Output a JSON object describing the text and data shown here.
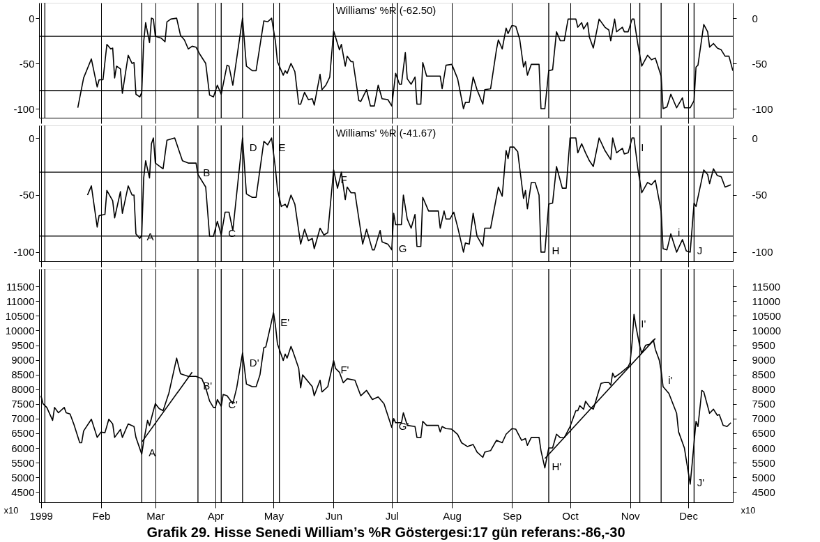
{
  "chart_data": [
    {
      "type": "line",
      "title": "Williams' %R (-62.50)",
      "xlim": [
        "1998-12-31",
        "1999-12-24"
      ],
      "xticks": [
        {
          "value": "1999-01-01",
          "label": null
        },
        {
          "value": "1999-02-01",
          "label": null
        },
        {
          "value": "1999-03-01",
          "label": null
        },
        {
          "value": "1999-04-01",
          "label": null
        },
        {
          "value": "1999-05-01",
          "label": null
        },
        {
          "value": "1999-06-01",
          "label": null
        },
        {
          "value": "1999-07-01",
          "label": null
        },
        {
          "value": "1999-08-01",
          "label": null
        },
        {
          "value": "1999-09-01",
          "label": null
        },
        {
          "value": "1999-10-01",
          "label": null
        },
        {
          "value": "1999-11-01",
          "label": null
        },
        {
          "value": "1999-12-01",
          "label": null
        }
      ],
      "ylim": [
        -110,
        17
      ],
      "yticks": [
        -100,
        -50,
        0
      ],
      "y2lim": [
        -110,
        17
      ],
      "y2ticks": [
        -100,
        -50,
        0
      ],
      "grid": "x",
      "tick_labels": "y",
      "ref_lines": [
        {
          "axis": "y",
          "value": -20
        },
        {
          "axis": "y",
          "value": -80
        },
        {
          "axis": "x",
          "value": "1999-01-03"
        },
        {
          "axis": "x",
          "value": "1999-02-22"
        },
        {
          "axis": "x",
          "value": "1999-03-23"
        },
        {
          "axis": "x",
          "value": "1999-04-04"
        },
        {
          "axis": "x",
          "value": "1999-04-15"
        },
        {
          "axis": "x",
          "value": "1999-05-04"
        },
        {
          "axis": "x",
          "value": "1999-07-04"
        },
        {
          "axis": "x",
          "value": "1999-09-20"
        },
        {
          "axis": "x",
          "value": "1999-11-06"
        },
        {
          "axis": "x",
          "value": "1999-11-17"
        },
        {
          "axis": "x",
          "value": "1999-12-04"
        }
      ],
      "series": [
        {
          "color": "#000000",
          "x": [
            "1999-01-20",
            "1999-01-23",
            "1999-01-27",
            "1999-01-30",
            "1999-01-31",
            "1999-02-02",
            "1999-02-04",
            "1999-02-06",
            "1999-02-07",
            "1999-02-08",
            "1999-02-09",
            "1999-02-11",
            "1999-02-12",
            "1999-02-15",
            "1999-02-17",
            "1999-02-18",
            "1999-02-19",
            "1999-02-21",
            "1999-02-22",
            "1999-02-23",
            "1999-02-24",
            "1999-02-26",
            "1999-02-27",
            "1999-02-28",
            "1999-03-01",
            "1999-03-04",
            "1999-03-06",
            "1999-03-07",
            "1999-03-09",
            "1999-03-12",
            "1999-03-14",
            "1999-03-16",
            "1999-03-18",
            "1999-03-20",
            "1999-03-22",
            "1999-03-24",
            "1999-03-27",
            "1999-03-29",
            "1999-03-31",
            "1999-04-02",
            "1999-04-04",
            "1999-04-07",
            "1999-04-08",
            "1999-04-10",
            "1999-04-15",
            "1999-04-17",
            "1999-04-20",
            "1999-04-22",
            "1999-04-26",
            "1999-04-28",
            "1999-04-30",
            "1999-05-02",
            "1999-05-03",
            "1999-05-06",
            "1999-05-07",
            "1999-05-08",
            "1999-05-10",
            "1999-05-12",
            "1999-05-14",
            "1999-05-15",
            "1999-05-17",
            "1999-05-19",
            "1999-05-21",
            "1999-05-22",
            "1999-05-25",
            "1999-05-26",
            "1999-05-28",
            "1999-05-30",
            "1999-06-01",
            "1999-06-04",
            "1999-06-05",
            "1999-06-07",
            "1999-06-08",
            "1999-06-10",
            "1999-06-11",
            "1999-06-14",
            "1999-06-15",
            "1999-06-18",
            "1999-06-20",
            "1999-06-22",
            "1999-06-24",
            "1999-06-26",
            "1999-06-29",
            "1999-07-01",
            "1999-07-03",
            "1999-07-05",
            "1999-07-06",
            "1999-07-08",
            "1999-07-09",
            "1999-07-11",
            "1999-07-13",
            "1999-07-14",
            "1999-07-16",
            "1999-07-17",
            "1999-07-19",
            "1999-07-26",
            "1999-07-27",
            "1999-07-29",
            "1999-08-01",
            "1999-08-04",
            "1999-08-07",
            "1999-08-08",
            "1999-08-10",
            "1999-08-12",
            "1999-08-14",
            "1999-08-17",
            "1999-08-18",
            "1999-08-21",
            "1999-08-24",
            "1999-08-25",
            "1999-08-27",
            "1999-08-29",
            "1999-08-30",
            "1999-09-01",
            "1999-09-03",
            "1999-09-05",
            "1999-09-07",
            "1999-09-08",
            "1999-09-09",
            "1999-09-11",
            "1999-09-15",
            "1999-09-16",
            "1999-09-18",
            "1999-09-20",
            "1999-09-22",
            "1999-09-24",
            "1999-09-26",
            "1999-09-28",
            "1999-09-30",
            "1999-10-04",
            "1999-10-05",
            "1999-10-07",
            "1999-10-08",
            "1999-10-10",
            "1999-10-11",
            "1999-10-13",
            "1999-10-16",
            "1999-10-19",
            "1999-10-21",
            "1999-10-22",
            "1999-10-24",
            "1999-10-25",
            "1999-10-28",
            "1999-10-29",
            "1999-10-31",
            "1999-11-02",
            "1999-11-03",
            "1999-11-05",
            "1999-11-07",
            "1999-11-10",
            "1999-11-12",
            "1999-11-14",
            "1999-11-17",
            "1999-11-18",
            "1999-11-20",
            "1999-11-22",
            "1999-11-25",
            "1999-11-28",
            "1999-11-29",
            "1999-12-02",
            "1999-12-04",
            "1999-12-05",
            "1999-12-06",
            "1999-12-09",
            "1999-12-11",
            "1999-12-12",
            "1999-12-14",
            "1999-12-16",
            "1999-12-18",
            "1999-12-20",
            "1999-12-22",
            "1999-12-24"
          ],
          "values": [
            -99,
            -66,
            -45,
            -76,
            -68,
            -68,
            -29,
            -34,
            -33,
            -66,
            -53,
            -56,
            -83,
            -41,
            -50,
            -49,
            -84,
            -87,
            -82,
            -26,
            -5,
            -27,
            0,
            -1,
            -20,
            -22,
            -26,
            -4,
            -1,
            0,
            -19,
            -24,
            -34,
            -31,
            -32,
            -40,
            -50,
            -85,
            -87,
            -74,
            -84,
            -52,
            -53,
            -74,
            0,
            -53,
            -58,
            -58,
            -3,
            -4,
            0,
            -26,
            -48,
            -63,
            -58,
            -61,
            -50,
            -59,
            -95,
            -95,
            -82,
            -90,
            -89,
            -96,
            -62,
            -79,
            -74,
            -65,
            -14,
            -35,
            -29,
            -53,
            -42,
            -48,
            -48,
            -91,
            -92,
            -79,
            -97,
            -97,
            -74,
            -89,
            -90,
            -97,
            -61,
            -73,
            -73,
            -38,
            -67,
            -73,
            -65,
            -95,
            -95,
            -49,
            -64,
            -64,
            -78,
            -52,
            -51,
            -67,
            -100,
            -93,
            -93,
            -65,
            -79,
            -95,
            -79,
            -78,
            -35,
            -24,
            -34,
            -11,
            -17,
            -8,
            -9,
            -23,
            -54,
            -48,
            -63,
            -51,
            -51,
            -100,
            -100,
            -58,
            -57,
            -15,
            -25,
            -25,
            -1,
            -1,
            -10,
            -5,
            -12,
            -5,
            -21,
            -33,
            -1,
            -10,
            -13,
            -25,
            -1,
            -15,
            -10,
            -15,
            -15,
            -1,
            -1,
            -29,
            -53,
            -41,
            -46,
            -44,
            -64,
            -100,
            -98,
            -84,
            -99,
            -88,
            -99,
            -99,
            -91,
            -54,
            -52,
            -7,
            -15,
            -32,
            -28,
            -33,
            -35,
            -42,
            -42,
            -58
          ]
        }
      ]
    },
    {
      "type": "line",
      "title": "Williams' %R (-41.67)",
      "xlim": [
        "1998-12-31",
        "1999-12-24"
      ],
      "xticks": [
        {
          "value": "1999-01-01",
          "label": null
        },
        {
          "value": "1999-02-01",
          "label": null
        },
        {
          "value": "1999-03-01",
          "label": null
        },
        {
          "value": "1999-04-01",
          "label": null
        },
        {
          "value": "1999-05-01",
          "label": null
        },
        {
          "value": "1999-06-01",
          "label": null
        },
        {
          "value": "1999-07-01",
          "label": null
        },
        {
          "value": "1999-08-01",
          "label": null
        },
        {
          "value": "1999-09-01",
          "label": null
        },
        {
          "value": "1999-10-01",
          "label": null
        },
        {
          "value": "1999-11-01",
          "label": null
        },
        {
          "value": "1999-12-01",
          "label": null
        }
      ],
      "ylim": [
        -108,
        11
      ],
      "yticks": [
        -100,
        -50,
        0
      ],
      "y2lim": [
        -108,
        11
      ],
      "y2ticks": [
        -100,
        -50,
        0
      ],
      "grid": "x",
      "tick_labels": "y",
      "ref_lines": [
        {
          "axis": "y",
          "value": -30
        },
        {
          "axis": "y",
          "value": -86
        },
        {
          "axis": "x",
          "value": "1999-01-03"
        },
        {
          "axis": "x",
          "value": "1999-02-22"
        },
        {
          "axis": "x",
          "value": "1999-03-23"
        },
        {
          "axis": "x",
          "value": "1999-04-04"
        },
        {
          "axis": "x",
          "value": "1999-04-15"
        },
        {
          "axis": "x",
          "value": "1999-05-04"
        },
        {
          "axis": "x",
          "value": "1999-07-04"
        },
        {
          "axis": "x",
          "value": "1999-09-20"
        },
        {
          "axis": "x",
          "value": "1999-11-06"
        },
        {
          "axis": "x",
          "value": "1999-11-17"
        },
        {
          "axis": "x",
          "value": "1999-12-04"
        }
      ],
      "annotations": [
        {
          "text": "A",
          "x": "1999-02-21",
          "y": -88
        },
        {
          "text": "B",
          "x": "1999-03-22",
          "y": -22
        },
        {
          "text": "C",
          "x": "1999-04-04",
          "y": -85
        },
        {
          "text": "D",
          "x": "1999-04-15",
          "y": 0
        },
        {
          "text": "E",
          "x": "1999-04-30",
          "y": 0
        },
        {
          "text": "F",
          "x": "1999-06-01",
          "y": -28
        },
        {
          "text": "G",
          "x": "1999-07-01",
          "y": -98
        },
        {
          "text": "H",
          "x": "1999-09-18",
          "y": -100
        },
        {
          "text": "I",
          "x": "1999-11-03",
          "y": 0
        },
        {
          "text": "i",
          "x": "1999-11-22",
          "y": -84
        },
        {
          "text": "J",
          "x": "1999-12-02",
          "y": -100
        }
      ],
      "series": [
        {
          "color": "#000000",
          "x": [
            "1999-01-25",
            "1999-01-27",
            "1999-01-30",
            "1999-01-31",
            "1999-02-03",
            "1999-02-04",
            "1999-02-07",
            "1999-02-08",
            "1999-02-11",
            "1999-02-12",
            "1999-02-15",
            "1999-02-17",
            "1999-02-18",
            "1999-02-19",
            "1999-02-21",
            "1999-02-22",
            "1999-02-23",
            "1999-02-24",
            "1999-02-26",
            "1999-02-27",
            "1999-02-28",
            "1999-03-01",
            "1999-03-05",
            "1999-03-07",
            "1999-03-11",
            "1999-03-15",
            "1999-03-18",
            "1999-03-22",
            "1999-03-23",
            "1999-03-27",
            "1999-03-29",
            "1999-03-31",
            "1999-04-02",
            "1999-04-04",
            "1999-04-06",
            "1999-04-08",
            "1999-04-10",
            "1999-04-15",
            "1999-04-17",
            "1999-04-20",
            "1999-04-22",
            "1999-04-26",
            "1999-04-28",
            "1999-04-30",
            "1999-05-02",
            "1999-05-03",
            "1999-05-05",
            "1999-05-07",
            "1999-05-08",
            "1999-05-10",
            "1999-05-12",
            "1999-05-15",
            "1999-05-17",
            "1999-05-19",
            "1999-05-21",
            "1999-05-22",
            "1999-05-25",
            "1999-05-27",
            "1999-05-29",
            "1999-06-01",
            "1999-06-03",
            "1999-06-05",
            "1999-06-07",
            "1999-06-08",
            "1999-06-10",
            "1999-06-12",
            "1999-06-16",
            "1999-06-18",
            "1999-06-21",
            "1999-06-22",
            "1999-06-25",
            "1999-06-26",
            "1999-06-29",
            "1999-07-01",
            "1999-07-02",
            "1999-07-03",
            "1999-07-06",
            "1999-07-07",
            "1999-07-09",
            "1999-07-11",
            "1999-07-13",
            "1999-07-14",
            "1999-07-16",
            "1999-07-17",
            "1999-07-20",
            "1999-07-25",
            "1999-07-26",
            "1999-07-28",
            "1999-07-29",
            "1999-07-31",
            "1999-08-02",
            "1999-08-04",
            "1999-08-07",
            "1999-08-08",
            "1999-08-10",
            "1999-08-12",
            "1999-08-14",
            "1999-08-17",
            "1999-08-18",
            "1999-08-21",
            "1999-08-25",
            "1999-08-27",
            "1999-08-29",
            "1999-08-30",
            "1999-08-31",
            "1999-09-02",
            "1999-09-04",
            "1999-09-05",
            "1999-09-07",
            "1999-09-08",
            "1999-09-09",
            "1999-09-11",
            "1999-09-13",
            "1999-09-15",
            "1999-09-16",
            "1999-09-18",
            "1999-09-20",
            "1999-09-22",
            "1999-09-24",
            "1999-09-27",
            "1999-09-29",
            "1999-10-01",
            "1999-10-04",
            "1999-10-05",
            "1999-10-07",
            "1999-10-09",
            "1999-10-11",
            "1999-10-13",
            "1999-10-16",
            "1999-10-19",
            "1999-10-22",
            "1999-10-23",
            "1999-10-25",
            "1999-10-28",
            "1999-10-29",
            "1999-10-31",
            "1999-11-02",
            "1999-11-03",
            "1999-11-05",
            "1999-11-07",
            "1999-11-10",
            "1999-11-12",
            "1999-11-14",
            "1999-11-17",
            "1999-11-18",
            "1999-11-20",
            "1999-11-22",
            "1999-11-25",
            "1999-11-28",
            "1999-11-30",
            "1999-12-02",
            "1999-12-04",
            "1999-12-05",
            "1999-12-09",
            "1999-12-11",
            "1999-12-12",
            "1999-12-14",
            "1999-12-16",
            "1999-12-18",
            "1999-12-20",
            "1999-12-23"
          ],
          "values": [
            -50,
            -42,
            -78,
            -68,
            -67,
            -46,
            -55,
            -70,
            -47,
            -66,
            -42,
            -50,
            -50,
            -84,
            -88,
            -85,
            -35,
            -20,
            -35,
            -5,
            0,
            -22,
            -27,
            -2,
            0,
            -20,
            -22,
            -22,
            -32,
            -43,
            -86,
            -86,
            -73,
            -85,
            -65,
            -65,
            -81,
            0,
            -49,
            -52,
            -52,
            -3,
            -6,
            0,
            -27,
            -45,
            -60,
            -58,
            -61,
            -50,
            -58,
            -93,
            -80,
            -90,
            -88,
            -97,
            -79,
            -85,
            -83,
            -28,
            -44,
            -30,
            -54,
            -43,
            -48,
            -48,
            -93,
            -80,
            -98,
            -98,
            -81,
            -91,
            -93,
            -98,
            -66,
            -76,
            -76,
            -50,
            -71,
            -79,
            -67,
            -95,
            -95,
            -52,
            -64,
            -64,
            -79,
            -64,
            -71,
            -71,
            -65,
            -78,
            -100,
            -92,
            -93,
            -66,
            -86,
            -95,
            -79,
            -79,
            -43,
            -51,
            -11,
            -18,
            -8,
            -8,
            -12,
            -26,
            -53,
            -46,
            -62,
            -39,
            -39,
            -50,
            -100,
            -100,
            -58,
            -57,
            -25,
            -44,
            -44,
            0,
            0,
            -13,
            -5,
            -13,
            -20,
            -25,
            0,
            -11,
            -19,
            0,
            -13,
            -9,
            -14,
            -13,
            0,
            0,
            -27,
            -48,
            -39,
            -41,
            -37,
            -64,
            -97,
            -98,
            -84,
            -100,
            -89,
            -99,
            -100,
            -57,
            -60,
            -28,
            -32,
            -40,
            -27,
            -33,
            -34,
            -43,
            -41
          ]
        }
      ]
    },
    {
      "type": "line",
      "xlim": [
        "1998-12-31",
        "1999-12-24"
      ],
      "xticks": [
        {
          "value": "1999-01-01",
          "label": "1999"
        },
        {
          "value": "1999-02-01",
          "label": "Feb"
        },
        {
          "value": "1999-03-01",
          "label": "Mar"
        },
        {
          "value": "1999-04-01",
          "label": "Apr"
        },
        {
          "value": "1999-05-01",
          "label": "May"
        },
        {
          "value": "1999-06-01",
          "label": "Jun"
        },
        {
          "value": "1999-07-01",
          "label": "Jul"
        },
        {
          "value": "1999-08-01",
          "label": "Aug"
        },
        {
          "value": "1999-09-01",
          "label": "Sep"
        },
        {
          "value": "1999-10-01",
          "label": "Oct"
        },
        {
          "value": "1999-11-01",
          "label": "Nov"
        },
        {
          "value": "1999-12-01",
          "label": "Dec"
        }
      ],
      "ylim": [
        4150,
        12100
      ],
      "yticks": [
        4500,
        5000,
        5500,
        6000,
        6500,
        7000,
        7500,
        8000,
        8500,
        9000,
        9500,
        10000,
        10500,
        11000,
        11500
      ],
      "y2lim": [
        4150,
        12100
      ],
      "y2ticks": [
        4500,
        5000,
        5500,
        6000,
        6500,
        7000,
        7500,
        8000,
        8500,
        9000,
        9500,
        10000,
        10500,
        11000,
        11500
      ],
      "grid": "x",
      "ref_lines": [
        {
          "axis": "x",
          "value": "1999-01-03"
        },
        {
          "axis": "x",
          "value": "1999-02-22"
        },
        {
          "axis": "x",
          "value": "1999-03-23"
        },
        {
          "axis": "x",
          "value": "1999-04-04"
        },
        {
          "axis": "x",
          "value": "1999-04-15"
        },
        {
          "axis": "x",
          "value": "1999-05-04"
        },
        {
          "axis": "x",
          "value": "1999-07-04"
        },
        {
          "axis": "x",
          "value": "1999-09-20"
        },
        {
          "axis": "x",
          "value": "1999-11-06"
        },
        {
          "axis": "x",
          "value": "1999-11-17"
        },
        {
          "axis": "x",
          "value": "1999-12-04"
        }
      ],
      "annotations": [
        "x10",
        "x10",
        "Grafik 29. Hisse Senedi William’s %R Göstergesi:17 gün referans:-86,-30",
        {
          "text": "A",
          "x": "1999-02-22",
          "y": 5790
        },
        {
          "text": "B'",
          "x": "1999-03-22",
          "y": 8440
        },
        {
          "text": "C'",
          "x": "1999-04-04",
          "y": 7420
        },
        {
          "text": "D'",
          "x": "1999-04-15",
          "y": 9240
        },
        {
          "text": "E'",
          "x": "1999-05-01",
          "y": 10610
        },
        {
          "text": "F'",
          "x": "1999-06-01",
          "y": 8980
        },
        {
          "text": "G'",
          "x": "1999-07-01",
          "y": 6700
        },
        {
          "text": "H'",
          "x": "1999-09-18",
          "y": 5320
        },
        {
          "text": "I'",
          "x": "1999-11-03",
          "y": 10550
        },
        {
          "text": "i'",
          "x": "1999-11-17",
          "y": 8640
        },
        {
          "text": "J'",
          "x": "1999-12-02",
          "y": 4770
        }
      ],
      "series": [
        {
          "color": "#000000",
          "x": [
            "1999-01-01",
            "1999-01-02",
            "1999-01-04",
            "1999-01-07",
            "1999-01-08",
            "1999-01-10",
            "1999-01-13",
            "1999-01-14",
            "1999-01-16",
            "1999-01-18",
            "1999-01-21",
            "1999-01-22",
            "1999-01-23",
            "1999-01-27",
            "1999-01-30",
            "1999-02-01",
            "1999-02-03",
            "1999-02-05",
            "1999-02-07",
            "1999-02-08",
            "1999-02-11",
            "1999-02-12",
            "1999-02-15",
            "1999-02-17",
            "1999-02-18",
            "1999-02-19",
            "1999-02-22",
            "1999-02-23",
            "1999-02-25",
            "1999-02-26",
            "1999-02-28",
            "1999-03-01",
            "1999-03-03",
            "1999-03-05",
            "1999-03-08",
            "1999-03-12",
            "1999-03-14",
            "1999-03-18",
            "1999-03-22",
            "1999-03-25",
            "1999-03-27",
            "1999-03-29",
            "1999-03-31",
            "1999-04-01",
            "1999-04-02",
            "1999-04-04",
            "1999-04-05",
            "1999-04-07",
            "1999-04-10",
            "1999-04-12",
            "1999-04-15",
            "1999-04-17",
            "1999-04-20",
            "1999-04-22",
            "1999-04-24",
            "1999-04-26",
            "1999-04-27",
            "1999-05-01",
            "1999-05-02",
            "1999-05-03",
            "1999-05-06",
            "1999-05-07",
            "1999-05-08",
            "1999-05-10",
            "1999-05-11",
            "1999-05-14",
            "1999-05-15",
            "1999-05-16",
            "1999-05-21",
            "1999-05-22",
            "1999-05-25",
            "1999-05-26",
            "1999-05-29",
            "1999-06-01",
            "1999-06-02",
            "1999-06-04",
            "1999-06-06",
            "1999-06-08",
            "1999-06-12",
            "1999-06-15",
            "1999-06-18",
            "1999-06-21",
            "1999-06-24",
            "1999-06-27",
            "1999-07-01",
            "1999-07-02",
            "1999-07-03",
            "1999-07-06",
            "1999-07-07",
            "1999-07-09",
            "1999-07-13",
            "1999-07-14",
            "1999-07-16",
            "1999-07-17",
            "1999-07-19",
            "1999-07-25",
            "1999-07-26",
            "1999-07-27",
            "1999-07-29",
            "1999-08-01",
            "1999-08-04",
            "1999-08-06",
            "1999-08-09",
            "1999-08-12",
            "1999-08-14",
            "1999-08-17",
            "1999-08-18",
            "1999-08-21",
            "1999-08-24",
            "1999-08-27",
            "1999-08-29",
            "1999-09-01",
            "1999-09-03",
            "1999-09-06",
            "1999-09-08",
            "1999-09-09",
            "1999-09-11",
            "1999-09-15",
            "1999-09-16",
            "1999-09-18",
            "1999-09-20",
            "1999-09-22",
            "1999-09-24",
            "1999-09-26",
            "1999-09-28",
            "1999-10-01",
            "1999-10-04",
            "1999-10-05",
            "1999-10-06",
            "1999-10-08",
            "1999-10-09",
            "1999-10-11",
            "1999-10-13",
            "1999-10-17",
            "1999-10-19",
            "1999-10-21",
            "1999-10-22",
            "1999-10-23",
            "1999-10-24",
            "1999-10-27",
            "1999-10-31",
            "1999-11-01",
            "1999-11-02",
            "1999-11-03",
            "1999-11-04",
            "1999-11-06",
            "1999-11-07",
            "1999-11-09",
            "1999-11-11",
            "1999-11-13",
            "1999-11-14",
            "1999-11-16",
            "1999-11-17",
            "1999-11-18",
            "1999-11-21",
            "1999-11-25",
            "1999-11-26",
            "1999-11-29",
            "1999-12-01",
            "1999-12-02",
            "1999-12-03",
            "1999-12-05",
            "1999-12-06",
            "1999-12-08",
            "1999-12-09",
            "1999-12-12",
            "1999-12-14",
            "1999-12-16",
            "1999-12-17",
            "1999-12-19",
            "1999-12-21",
            "1999-12-23"
          ],
          "values": [
            7780,
            7510,
            7380,
            6940,
            7380,
            7200,
            7380,
            7200,
            7160,
            6800,
            6180,
            6180,
            6580,
            6980,
            6360,
            6540,
            6520,
            6980,
            6820,
            6360,
            6630,
            6360,
            6820,
            6760,
            6730,
            6360,
            5790,
            6230,
            6940,
            6760,
            7270,
            7510,
            7340,
            7270,
            7870,
            9060,
            8530,
            8440,
            8440,
            8360,
            8050,
            7600,
            7380,
            7380,
            7650,
            7420,
            7820,
            7780,
            7510,
            8050,
            9240,
            8180,
            8090,
            8090,
            8490,
            9420,
            9440,
            10610,
            10170,
            9550,
            8980,
            9200,
            9060,
            9460,
            9290,
            8710,
            8050,
            8490,
            8090,
            7780,
            8310,
            7910,
            8090,
            8980,
            8710,
            8580,
            8220,
            8360,
            8310,
            7780,
            7960,
            7650,
            7740,
            7510,
            6700,
            7000,
            6860,
            6860,
            7200,
            6770,
            6730,
            6360,
            6350,
            6910,
            6770,
            6770,
            6550,
            6730,
            6660,
            6640,
            6460,
            6180,
            6050,
            6120,
            5860,
            5680,
            5860,
            5910,
            6260,
            6180,
            6470,
            6660,
            6640,
            6260,
            6320,
            6090,
            6360,
            6360,
            5910,
            5320,
            6000,
            6000,
            6470,
            6350,
            6350,
            6730,
            7270,
            7270,
            7440,
            7320,
            7590,
            7410,
            7320,
            8200,
            8230,
            8230,
            8140,
            8550,
            8410,
            8550,
            8770,
            8910,
            9590,
            10550,
            10140,
            9460,
            9230,
            9500,
            9530,
            9680,
            9360,
            9000,
            8640,
            8090,
            7860,
            7180,
            6550,
            6000,
            5180,
            4770,
            5460,
            6910,
            6730,
            7960,
            7910,
            7180,
            7320,
            7110,
            7140,
            6770,
            6730,
            6860
          ]
        },
        {
          "type": "line",
          "color": "#000000",
          "x": [
            "1999-02-22",
            "1999-03-20"
          ],
          "values": [
            6200,
            8580
          ]
        },
        {
          "type": "line",
          "color": "#000000",
          "x": [
            "1999-09-18",
            "1999-11-14"
          ],
          "values": [
            5640,
            9730
          ]
        }
      ]
    }
  ]
}
